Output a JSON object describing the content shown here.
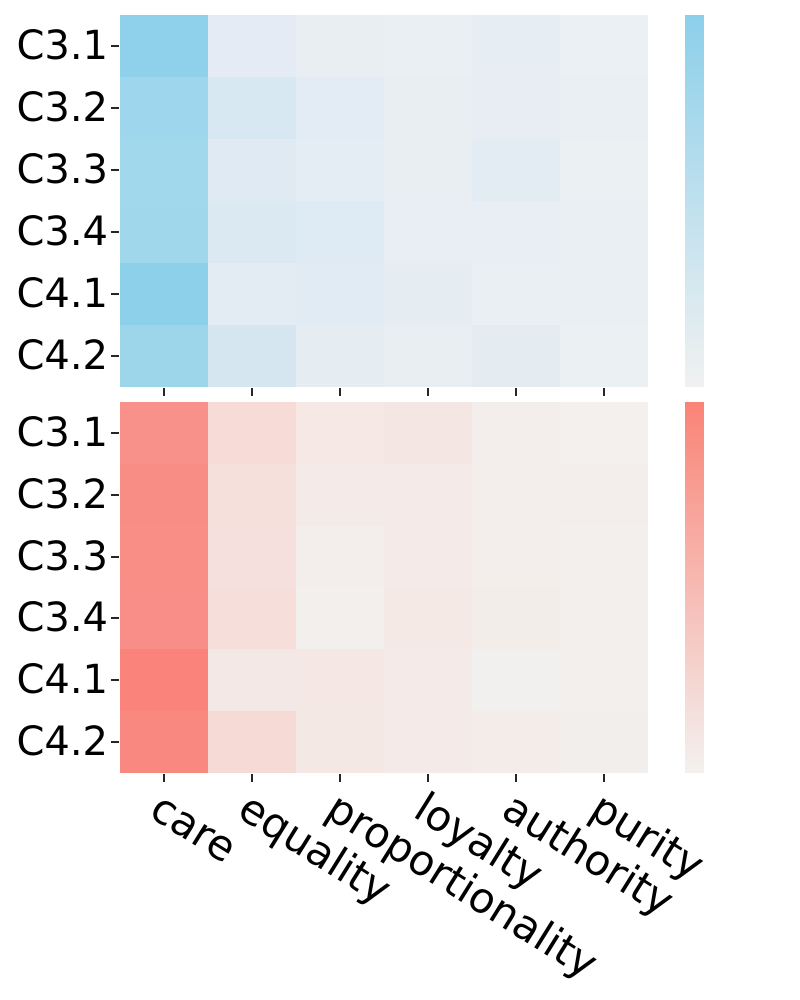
{
  "figure": {
    "row_labels": [
      "C3.1",
      "C3.2",
      "C3.3",
      "C3.4",
      "C4.1",
      "C4.2"
    ],
    "column_labels": [
      "care",
      "equality",
      "proportionality",
      "loyalty",
      "authority",
      "purity"
    ],
    "text_color": "#000000",
    "background_color": "#ffffff"
  },
  "chart_data": [
    {
      "type": "heatmap",
      "name": "top-blue-heatmap",
      "rows": [
        "C3.1",
        "C3.2",
        "C3.3",
        "C3.4",
        "C4.1",
        "C4.2"
      ],
      "columns": [
        "care",
        "equality",
        "proportionality",
        "loyalty",
        "authority",
        "purity"
      ],
      "values": [
        [
          0.93,
          0.13,
          0.08,
          0.07,
          0.1,
          0.06
        ],
        [
          0.79,
          0.26,
          0.14,
          0.08,
          0.09,
          0.07
        ],
        [
          0.75,
          0.2,
          0.12,
          0.08,
          0.12,
          0.06
        ],
        [
          0.76,
          0.23,
          0.19,
          0.09,
          0.09,
          0.07
        ],
        [
          0.95,
          0.13,
          0.17,
          0.11,
          0.06,
          0.07
        ],
        [
          0.79,
          0.3,
          0.11,
          0.08,
          0.13,
          0.06
        ]
      ],
      "cell_colors": [
        [
          "#8FD1EA",
          "#E4EBF4",
          "#E9EEF3",
          "#EAEFF3",
          "#E6EDF3",
          "#EBF0F4"
        ],
        [
          "#9ED7ED",
          "#D8E8F2",
          "#E3EBF4",
          "#E9EEF3",
          "#E7EDF3",
          "#E9EFF3"
        ],
        [
          "#A2D8EC",
          "#DFEAF2",
          "#E4EDF3",
          "#E9EEF2",
          "#E3ECF3",
          "#EBF0F3"
        ],
        [
          "#A0D7EB",
          "#DBE9F3",
          "#DFEBF4",
          "#E8EEF3",
          "#E8EEF3",
          "#EAEFF3"
        ],
        [
          "#8DD0E9",
          "#E3EBF3",
          "#E0EBF3",
          "#E6EDF2",
          "#E9EFF3",
          "#EAEFF3"
        ],
        [
          "#9DD6EB",
          "#D5E6F0",
          "#E6EDF2",
          "#E9EEF2",
          "#E4ECF2",
          "#EBF0F3"
        ]
      ],
      "palette": "white-to-skyblue",
      "max_color": "#8CCFEA",
      "legend_position": "right",
      "colorbar": {
        "top_color": "#8CCFEA",
        "bottom_color": "#F0F1F1"
      },
      "grid": false,
      "annotations": false
    },
    {
      "type": "heatmap",
      "name": "bottom-red-heatmap",
      "rows": [
        "C3.1",
        "C3.2",
        "C3.3",
        "C3.4",
        "C4.1",
        "C4.2"
      ],
      "columns": [
        "care",
        "equality",
        "proportionality",
        "loyalty",
        "authority",
        "purity"
      ],
      "values": [
        [
          0.85,
          0.19,
          0.08,
          0.1,
          0.02,
          0.01
        ],
        [
          0.88,
          0.14,
          0.05,
          0.05,
          0.02,
          0.02
        ],
        [
          0.88,
          0.14,
          0.02,
          0.04,
          0.02,
          0.01
        ],
        [
          0.88,
          0.16,
          0.01,
          0.06,
          0.03,
          0.01
        ],
        [
          0.97,
          0.07,
          0.08,
          0.05,
          0.01,
          0.01
        ],
        [
          0.92,
          0.2,
          0.07,
          0.05,
          0.04,
          0.02
        ]
      ],
      "cell_colors": [
        [
          "#F8918A",
          "#F7DBD7",
          "#F5E8E5",
          "#F4E6E3",
          "#F3EEEC",
          "#F3F0EE"
        ],
        [
          "#F88D85",
          "#F5E0DC",
          "#F4EAE7",
          "#F4EAE7",
          "#F3EEEC",
          "#F3EEEC"
        ],
        [
          "#F88E86",
          "#F6E0DD",
          "#F3EEEC",
          "#F4EBE8",
          "#F3EEEC",
          "#F2EFED"
        ],
        [
          "#F88E87",
          "#F6DEDA",
          "#F3EFED",
          "#F5E9E6",
          "#F3EDEA",
          "#F2EFED"
        ],
        [
          "#FA837B",
          "#F4E8E6",
          "#F4E7E4",
          "#F4EAE7",
          "#F2F0EE",
          "#F2EFED"
        ],
        [
          "#F98980",
          "#F6DAD5",
          "#F4E8E5",
          "#F4EAE7",
          "#F3ECE9",
          "#F2EEEC"
        ]
      ],
      "palette": "white-to-salmon",
      "max_color": "#FA8376",
      "legend_position": "right",
      "colorbar": {
        "top_color": "#FA8376",
        "bottom_color": "#F3F1EF"
      },
      "grid": false,
      "annotations": false
    }
  ]
}
